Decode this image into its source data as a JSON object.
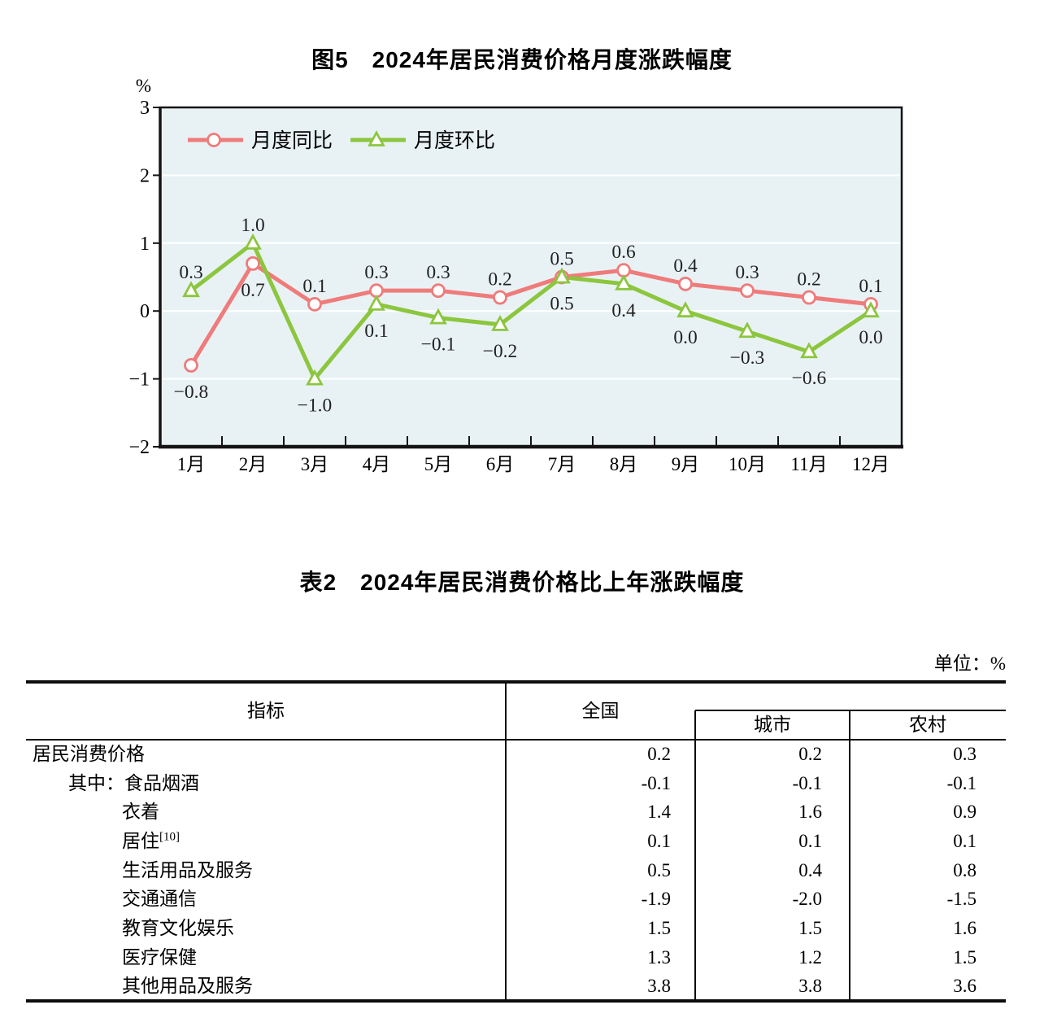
{
  "figure": {
    "title": "图5　2024年居民消费价格月度涨跌幅度"
  },
  "chart_data": {
    "type": "line",
    "title": "图5　2024年居民消费价格月度涨跌幅度",
    "categories": [
      "1月",
      "2月",
      "3月",
      "4月",
      "5月",
      "6月",
      "7月",
      "8月",
      "9月",
      "10月",
      "11月",
      "12月"
    ],
    "series": [
      {
        "name": "月度同比",
        "marker": "circle",
        "color": "#EF7B7B",
        "values": [
          -0.8,
          0.7,
          0.1,
          0.3,
          0.3,
          0.2,
          0.5,
          0.6,
          0.4,
          0.3,
          0.2,
          0.1
        ]
      },
      {
        "name": "月度环比",
        "marker": "triangle",
        "color": "#8CC63E",
        "values": [
          0.3,
          1.0,
          -1.0,
          0.1,
          -0.1,
          -0.2,
          0.5,
          0.4,
          0.0,
          -0.3,
          -0.6,
          0.0
        ]
      }
    ],
    "xlabel": "",
    "ylabel": "%",
    "ylim": [
      -2,
      3
    ],
    "yticks": [
      3,
      2,
      1,
      0,
      -1,
      -2
    ],
    "grid": true,
    "gridline_color": "#FFFFFF",
    "plot_bg": "#E8F2F5",
    "axis_color": "#141414",
    "label_color": "#222222",
    "legend_position": "top-left"
  },
  "table": {
    "title": "表2　2024年居民消费价格比上年涨跌幅度",
    "unit": "单位：%",
    "header": {
      "indicator": "指标",
      "national": "全国",
      "city": "城市",
      "rural": "农村"
    },
    "rows": [
      {
        "prefix": "",
        "label": "居民消费价格",
        "sup": "",
        "indent": 0,
        "values": [
          "0.2",
          "0.2",
          "0.3"
        ]
      },
      {
        "prefix": "其中：",
        "label": "食品烟酒",
        "sup": "",
        "indent": 1,
        "values": [
          "-0.1",
          "-0.1",
          "-0.1"
        ]
      },
      {
        "prefix": "",
        "label": "衣着",
        "sup": "",
        "indent": 2,
        "values": [
          "1.4",
          "1.6",
          "0.9"
        ]
      },
      {
        "prefix": "",
        "label": "居住",
        "sup": "[10]",
        "indent": 2,
        "values": [
          "0.1",
          "0.1",
          "0.1"
        ]
      },
      {
        "prefix": "",
        "label": "生活用品及服务",
        "sup": "",
        "indent": 2,
        "values": [
          "0.5",
          "0.4",
          "0.8"
        ]
      },
      {
        "prefix": "",
        "label": "交通通信",
        "sup": "",
        "indent": 2,
        "values": [
          "-1.9",
          "-2.0",
          "-1.5"
        ]
      },
      {
        "prefix": "",
        "label": "教育文化娱乐",
        "sup": "",
        "indent": 2,
        "values": [
          "1.5",
          "1.5",
          "1.6"
        ]
      },
      {
        "prefix": "",
        "label": "医疗保健",
        "sup": "",
        "indent": 2,
        "values": [
          "1.3",
          "1.2",
          "1.5"
        ]
      },
      {
        "prefix": "",
        "label": "其他用品及服务",
        "sup": "",
        "indent": 2,
        "values": [
          "3.8",
          "3.8",
          "3.6"
        ]
      }
    ]
  }
}
